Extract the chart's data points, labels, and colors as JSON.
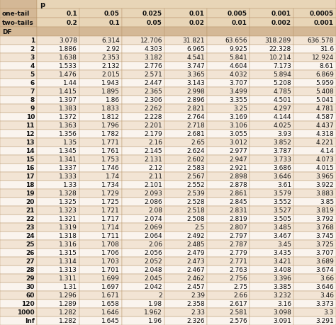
{
  "header_row2": [
    "one-tail",
    "0.1",
    "0.05",
    "0.025",
    "0.01",
    "0.005",
    "0.001",
    "0.0005"
  ],
  "header_row3": [
    "two-tails",
    "0.2",
    "0.1",
    "0.05",
    "0.02",
    "0.01",
    "0.002",
    "0.001"
  ],
  "rows": [
    [
      "1",
      "3.078",
      "6.314",
      "12.706",
      "31.821",
      "63.656",
      "318.289",
      "636.578"
    ],
    [
      "2",
      "1.886",
      "2.92",
      "4.303",
      "6.965",
      "9.925",
      "22.328",
      "31.6"
    ],
    [
      "3",
      "1.638",
      "2.353",
      "3.182",
      "4.541",
      "5.841",
      "10.214",
      "12.924"
    ],
    [
      "4",
      "1.533",
      "2.132",
      "2.776",
      "3.747",
      "4.604",
      "7.173",
      "8.61"
    ],
    [
      "5",
      "1.476",
      "2.015",
      "2.571",
      "3.365",
      "4.032",
      "5.894",
      "6.869"
    ],
    [
      "6",
      "1.44",
      "1.943",
      "2.447",
      "3.143",
      "3.707",
      "5.208",
      "5.959"
    ],
    [
      "7",
      "1.415",
      "1.895",
      "2.365",
      "2.998",
      "3.499",
      "4.785",
      "5.408"
    ],
    [
      "8",
      "1.397",
      "1.86",
      "2.306",
      "2.896",
      "3.355",
      "4.501",
      "5.041"
    ],
    [
      "9",
      "1.383",
      "1.833",
      "2.262",
      "2.821",
      "3.25",
      "4.297",
      "4.781"
    ],
    [
      "10",
      "1.372",
      "1.812",
      "2.228",
      "2.764",
      "3.169",
      "4.144",
      "4.587"
    ],
    [
      "11",
      "1.363",
      "1.796",
      "2.201",
      "2.718",
      "3.106",
      "4.025",
      "4.437"
    ],
    [
      "12",
      "1.356",
      "1.782",
      "2.179",
      "2.681",
      "3.055",
      "3.93",
      "4.318"
    ],
    [
      "13",
      "1.35",
      "1.771",
      "2.16",
      "2.65",
      "3.012",
      "3.852",
      "4.221"
    ],
    [
      "14",
      "1.345",
      "1.761",
      "2.145",
      "2.624",
      "2.977",
      "3.787",
      "4.14"
    ],
    [
      "15",
      "1.341",
      "1.753",
      "2.131",
      "2.602",
      "2.947",
      "3.733",
      "4.073"
    ],
    [
      "16",
      "1.337",
      "1.746",
      "2.12",
      "2.583",
      "2.921",
      "3.686",
      "4.015"
    ],
    [
      "17",
      "1.333",
      "1.74",
      "2.11",
      "2.567",
      "2.898",
      "3.646",
      "3.965"
    ],
    [
      "18",
      "1.33",
      "1.734",
      "2.101",
      "2.552",
      "2.878",
      "3.61",
      "3.922"
    ],
    [
      "19",
      "1.328",
      "1.729",
      "2.093",
      "2.539",
      "2.861",
      "3.579",
      "3.883"
    ],
    [
      "20",
      "1.325",
      "1.725",
      "2.086",
      "2.528",
      "2.845",
      "3.552",
      "3.85"
    ],
    [
      "21",
      "1.323",
      "1.721",
      "2.08",
      "2.518",
      "2.831",
      "3.527",
      "3.819"
    ],
    [
      "22",
      "1.321",
      "1.717",
      "2.074",
      "2.508",
      "2.819",
      "3.505",
      "3.792"
    ],
    [
      "23",
      "1.319",
      "1.714",
      "2.069",
      "2.5",
      "2.807",
      "3.485",
      "3.768"
    ],
    [
      "24",
      "1.318",
      "1.711",
      "2.064",
      "2.492",
      "2.797",
      "3.467",
      "3.745"
    ],
    [
      "25",
      "1.316",
      "1.708",
      "2.06",
      "2.485",
      "2.787",
      "3.45",
      "3.725"
    ],
    [
      "26",
      "1.315",
      "1.706",
      "2.056",
      "2.479",
      "2.779",
      "3.435",
      "3.707"
    ],
    [
      "27",
      "1.314",
      "1.703",
      "2.052",
      "2.473",
      "2.771",
      "3.421",
      "3.689"
    ],
    [
      "28",
      "1.313",
      "1.701",
      "2.048",
      "2.467",
      "2.763",
      "3.408",
      "3.674"
    ],
    [
      "29",
      "1.311",
      "1.699",
      "2.045",
      "2.462",
      "2.756",
      "3.396",
      "3.66"
    ],
    [
      "30",
      "1.31",
      "1.697",
      "2.042",
      "2.457",
      "2.75",
      "3.385",
      "3.646"
    ],
    [
      "60",
      "1.296",
      "1.671",
      "2",
      "2.39",
      "2.66",
      "3.232",
      "3.46"
    ],
    [
      "120",
      "1.289",
      "1.658",
      "1.98",
      "2.358",
      "2.617",
      "3.16",
      "3.373"
    ],
    [
      "1000",
      "1.282",
      "1.646",
      "1.962",
      "2.33",
      "2.581",
      "3.098",
      "3.3"
    ],
    [
      "Inf",
      "1.282",
      "1.645",
      "1.96",
      "2.326",
      "2.576",
      "3.091",
      "3.291"
    ]
  ],
  "color_header_top": "#d4b896",
  "color_header_mid": "#e8d5b7",
  "color_header_df": "#d4b896",
  "color_row_even": "#f2e4d4",
  "color_row_odd": "#faf4ee",
  "color_border": "#b8966a",
  "color_text": "#111111",
  "color_bg": "#ffffff",
  "one_tail_vals": [
    "0.1",
    "0.05",
    "0.025",
    "0.01",
    "0.005",
    "0.001",
    "0.0005"
  ],
  "two_tail_vals": [
    "0.2",
    "0.1",
    "0.05",
    "0.02",
    "0.01",
    "0.002",
    "0.001"
  ]
}
